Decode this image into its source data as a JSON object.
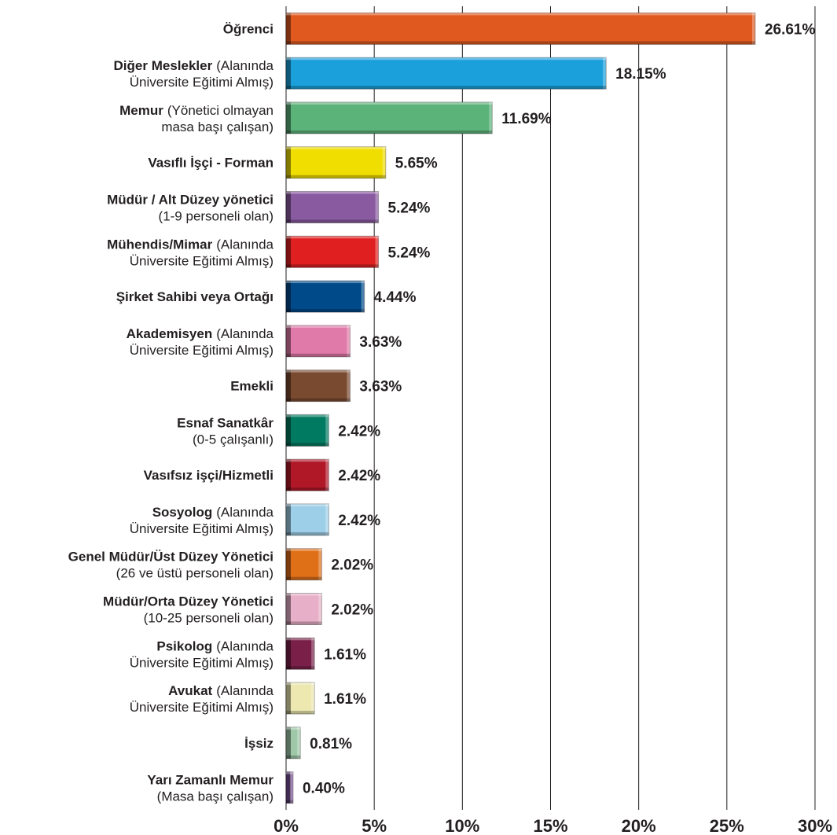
{
  "chart_data": {
    "type": "bar",
    "orientation": "horizontal",
    "categories": [
      "Öğrenci",
      "Diğer Meslekler",
      "Memur",
      "Vasıflı İşçi - Forman",
      "Müdür / Alt Düzey yönetici",
      "Mühendis/Mimar",
      "Şirket Sahibi veya Ortağı",
      "Akademisyen",
      "Emekli",
      "Esnaf Sanatkâr",
      "Vasıfsız işçi/Hizmetli",
      "Sosyolog",
      "Genel Müdür/Üst Düzey Yönetici",
      "Müdür/Orta Düzey Yönetici",
      "Psikolog",
      "Avukat",
      "İşsiz",
      "Yarı Zamanlı Memur"
    ],
    "category_notes": [
      null,
      [
        "(Alanında",
        "Üniversite Eğitimi Almış)"
      ],
      [
        "(Yönetici olmayan",
        "masa başı çalışan)"
      ],
      null,
      [
        "(1-9 personeli olan)"
      ],
      [
        "(Alanında",
        "Üniversite Eğitimi Almış)"
      ],
      null,
      [
        "(Alanında",
        "Üniversite Eğitimi Almış)"
      ],
      null,
      [
        "(0-5 çalışanlı)"
      ],
      null,
      [
        "(Alanında",
        "Üniversite Eğitimi Almış)"
      ],
      [
        "(26 ve üstü personeli olan)"
      ],
      [
        "(10-25 personeli olan)"
      ],
      [
        "(Alanında",
        "Üniversite Eğitimi Almış)"
      ],
      [
        "(Alanında",
        "Üniversite Eğitimi Almış)"
      ],
      null,
      [
        "(Masa başı çalışan)"
      ]
    ],
    "values": [
      26.61,
      18.15,
      11.69,
      5.65,
      5.24,
      5.24,
      4.44,
      3.63,
      3.63,
      2.42,
      2.42,
      2.42,
      2.02,
      2.02,
      1.61,
      1.61,
      0.81,
      0.4
    ],
    "value_labels": [
      "26.61%",
      "18.15%",
      "11.69%",
      "5.65%",
      "5.24%",
      "5.24%",
      "4.44%",
      "3.63%",
      "3.63%",
      "2.42%",
      "2.42%",
      "2.42%",
      "2.02%",
      "2.02%",
      "1.61%",
      "1.61%",
      "0.81%",
      "0.40%"
    ],
    "colors": [
      "#e05a20",
      "#1ba0dc",
      "#5cb37a",
      "#f0de00",
      "#8a5aa0",
      "#e02020",
      "#004a8a",
      "#e07aa8",
      "#7a4a30",
      "#007a60",
      "#b01828",
      "#9ecfe8",
      "#e07018",
      "#e8b0c8",
      "#7a2048",
      "#ece8b0",
      "#9ec8a8",
      "#7a5098"
    ],
    "xlim": [
      0,
      30
    ],
    "xticks": [
      {
        "value": 0,
        "label": "0%"
      },
      {
        "value": 5,
        "label": "5%"
      },
      {
        "value": 10,
        "label": "10%"
      },
      {
        "value": 15,
        "label": "15%"
      },
      {
        "value": 20,
        "label": "20%"
      },
      {
        "value": 25,
        "label": "25%"
      },
      {
        "value": 30,
        "label": "30%"
      }
    ],
    "grid": true
  }
}
